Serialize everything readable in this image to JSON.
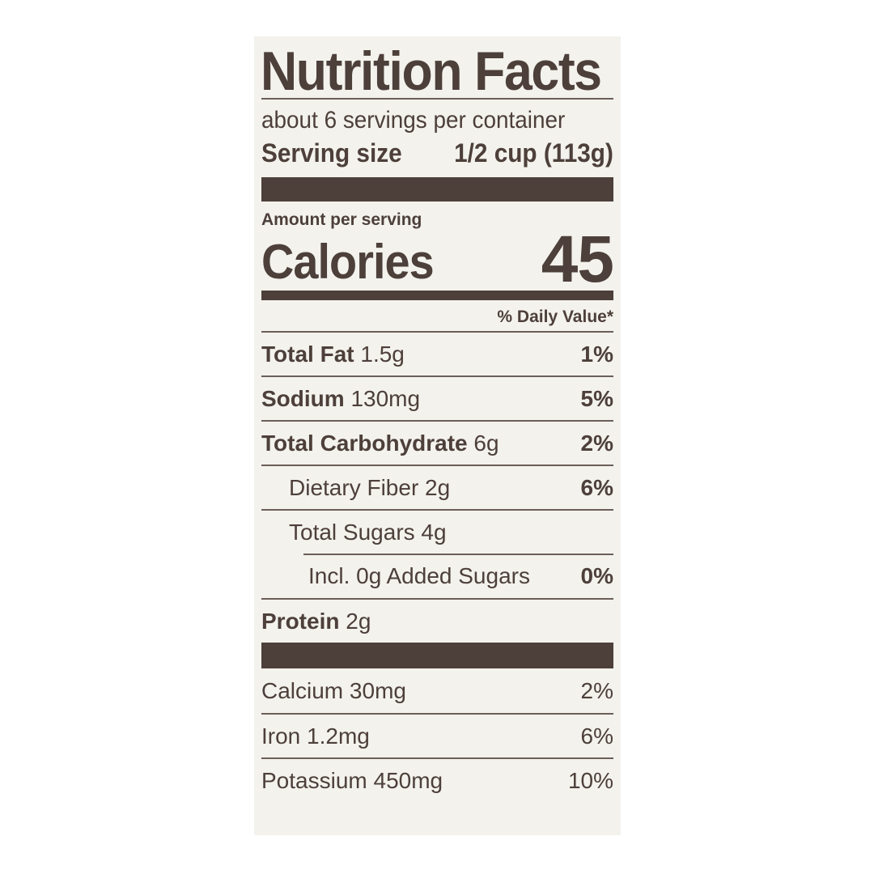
{
  "label": {
    "title": "Nutrition Facts",
    "servings_per_container": "about 6 servings per container",
    "serving_size_label": "Serving size",
    "serving_size_value": "1/2 cup (113g)",
    "amount_per_serving": "Amount per serving",
    "calories_label": "Calories",
    "calories_value": "45",
    "daily_value_header": "% Daily Value*",
    "nutrients": [
      {
        "name": "Total Fat",
        "amount": "1.5g",
        "dv": "1%"
      },
      {
        "name": "Sodium",
        "amount": "130mg",
        "dv": "5%"
      },
      {
        "name": "Total Carbohydrate",
        "amount": "6g",
        "dv": "2%"
      },
      {
        "name": "Dietary Fiber",
        "amount": "2g",
        "dv": "6%"
      },
      {
        "name": "Total Sugars",
        "amount": "4g",
        "dv": ""
      },
      {
        "name": "Incl. 0g Added Sugars",
        "amount": "",
        "dv": "0%"
      },
      {
        "name": "Protein",
        "amount": "2g",
        "dv": ""
      }
    ],
    "vitamins": [
      {
        "name": "Calcium",
        "amount": "30mg",
        "dv": "2%"
      },
      {
        "name": "Iron",
        "amount": "1.2mg",
        "dv": "6%"
      },
      {
        "name": "Potassium",
        "amount": "450mg",
        "dv": "10%"
      }
    ]
  },
  "colors": {
    "ink": "#4d3f3a",
    "label_background": "#f3f2ed",
    "page_background": "#ffffff"
  }
}
